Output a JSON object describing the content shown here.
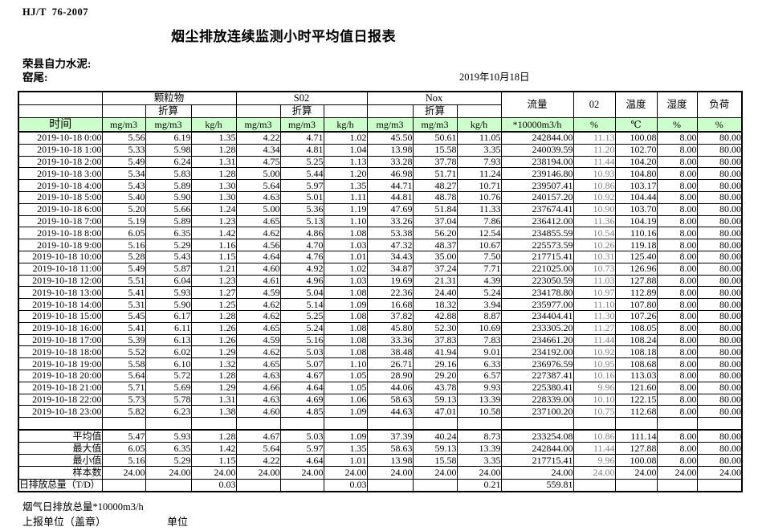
{
  "page": {
    "standard": "HJ/T  76-2007",
    "title": "烟尘排放连续监测小时平均值日报表",
    "company": "荣县自力水泥:",
    "location": "窑尾:",
    "date": "2019年10月18日"
  },
  "table": {
    "time_header": "时间",
    "converted_label": "折算",
    "groups": {
      "pm": "颗粒物",
      "so2": "S02",
      "nox": "Nox",
      "flow": "流量",
      "o2": "02",
      "temp": "温度",
      "humidity": "湿度",
      "load": "负荷"
    },
    "units": [
      "mg/m3",
      "mg/m3",
      "kg/h",
      "mg/m3",
      "mg/m3",
      "kg/h",
      "mg/m3",
      "mg/m3",
      "kg/h",
      "*10000m3/h",
      "%",
      "℃",
      "%",
      "%"
    ],
    "rows": [
      {
        "time": "2019-10-18 0:00",
        "values": [
          "5.56",
          "6.19",
          "1.35",
          "4.22",
          "4.71",
          "1.02",
          "45.50",
          "50.61",
          "11.05",
          "242844.00",
          "11.13",
          "100.08",
          "8.00",
          "80.00"
        ]
      },
      {
        "time": "2019-10-18 1:00",
        "values": [
          "5.33",
          "5.98",
          "1.28",
          "4.34",
          "4.81",
          "1.04",
          "13.98",
          "15.58",
          "3.35",
          "240039.59",
          "11.20",
          "102.70",
          "8.00",
          "80.00"
        ]
      },
      {
        "time": "2019-10-18 2:00",
        "values": [
          "5.49",
          "6.24",
          "1.31",
          "4.75",
          "5.25",
          "1.13",
          "33.28",
          "37.78",
          "7.93",
          "238194.00",
          "11.44",
          "104.20",
          "8.00",
          "80.00"
        ]
      },
      {
        "time": "2019-10-18 3:00",
        "values": [
          "5.34",
          "5.83",
          "1.28",
          "5.00",
          "5.44",
          "1.20",
          "46.98",
          "51.71",
          "11.24",
          "239146.80",
          "10.93",
          "104.80",
          "8.00",
          "80.00"
        ]
      },
      {
        "time": "2019-10-18 4:00",
        "values": [
          "5.43",
          "5.89",
          "1.30",
          "5.64",
          "5.97",
          "1.35",
          "44.71",
          "48.27",
          "10.71",
          "239507.41",
          "10.86",
          "103.17",
          "8.00",
          "80.00"
        ]
      },
      {
        "time": "2019-10-18 5:00",
        "values": [
          "5.40",
          "5.90",
          "1.30",
          "4.63",
          "5.01",
          "1.11",
          "44.81",
          "48.78",
          "10.76",
          "240157.20",
          "10.92",
          "104.44",
          "8.00",
          "80.00"
        ]
      },
      {
        "time": "2019-10-18 6:00",
        "values": [
          "5.20",
          "5.66",
          "1.24",
          "5.00",
          "5.36",
          "1.19",
          "47.69",
          "51.84",
          "11.33",
          "237674.41",
          "10.90",
          "103.70",
          "8.00",
          "80.00"
        ]
      },
      {
        "time": "2019-10-18 7:00",
        "values": [
          "5.19",
          "5.89",
          "1.23",
          "4.65",
          "5.13",
          "1.10",
          "33.26",
          "37.04",
          "7.86",
          "236412.00",
          "11.36",
          "104.19",
          "8.00",
          "80.00"
        ]
      },
      {
        "time": "2019-10-18 8:00",
        "values": [
          "6.05",
          "6.35",
          "1.42",
          "4.62",
          "4.86",
          "1.08",
          "53.38",
          "56.20",
          "12.54",
          "234855.59",
          "10.54",
          "110.16",
          "8.00",
          "80.00"
        ]
      },
      {
        "time": "2019-10-18 9:00",
        "values": [
          "5.16",
          "5.29",
          "1.16",
          "4.56",
          "4.70",
          "1.03",
          "47.32",
          "48.37",
          "10.67",
          "225573.59",
          "10.26",
          "119.18",
          "8.00",
          "80.00"
        ]
      },
      {
        "time": "2019-10-18 10:00",
        "values": [
          "5.28",
          "5.43",
          "1.15",
          "4.64",
          "4.76",
          "1.01",
          "34.43",
          "35.00",
          "7.50",
          "217715.41",
          "10.31",
          "125.40",
          "8.00",
          "80.00"
        ]
      },
      {
        "time": "2019-10-18 11:00",
        "values": [
          "5.49",
          "5.87",
          "1.21",
          "4.60",
          "4.92",
          "1.02",
          "34.87",
          "37.24",
          "7.71",
          "221025.00",
          "10.73",
          "126.96",
          "8.00",
          "80.00"
        ]
      },
      {
        "time": "2019-10-18 12:00",
        "values": [
          "5.51",
          "6.04",
          "1.23",
          "4.61",
          "4.96",
          "1.03",
          "19.69",
          "21.31",
          "4.39",
          "223050.59",
          "11.03",
          "127.88",
          "8.00",
          "80.00"
        ]
      },
      {
        "time": "2019-10-18 13:00",
        "values": [
          "5.41",
          "5.93",
          "1.27",
          "4.59",
          "5.04",
          "1.08",
          "22.36",
          "24.40",
          "5.24",
          "234178.80",
          "10.97",
          "112.89",
          "8.00",
          "80.00"
        ]
      },
      {
        "time": "2019-10-18 14:00",
        "values": [
          "5.31",
          "5.90",
          "1.25",
          "4.62",
          "5.14",
          "1.09",
          "16.68",
          "18.32",
          "3.94",
          "235977.00",
          "11.10",
          "107.80",
          "8.00",
          "80.00"
        ]
      },
      {
        "time": "2019-10-18 15:00",
        "values": [
          "5.45",
          "6.17",
          "1.28",
          "4.62",
          "5.25",
          "1.08",
          "37.82",
          "42.88",
          "8.87",
          "234404.41",
          "11.30",
          "107.26",
          "8.00",
          "80.00"
        ]
      },
      {
        "time": "2019-10-18 16:00",
        "values": [
          "5.41",
          "6.11",
          "1.26",
          "4.65",
          "5.24",
          "1.08",
          "45.80",
          "52.30",
          "10.69",
          "233305.20",
          "11.27",
          "108.05",
          "8.00",
          "80.00"
        ]
      },
      {
        "time": "2019-10-18 17:00",
        "values": [
          "5.39",
          "6.13",
          "1.26",
          "4.59",
          "5.16",
          "1.08",
          "33.36",
          "37.83",
          "7.83",
          "234661.20",
          "11.44",
          "108.24",
          "8.00",
          "80.00"
        ]
      },
      {
        "time": "2019-10-18 18:00",
        "values": [
          "5.52",
          "6.02",
          "1.29",
          "4.62",
          "5.03",
          "1.08",
          "38.48",
          "41.94",
          "9.01",
          "234192.00",
          "10.92",
          "108.18",
          "8.00",
          "80.00"
        ]
      },
      {
        "time": "2019-10-18 19:00",
        "values": [
          "5.58",
          "6.10",
          "1.32",
          "4.65",
          "5.07",
          "1.10",
          "26.71",
          "29.16",
          "6.33",
          "236976.59",
          "10.95",
          "108.68",
          "8.00",
          "80.00"
        ]
      },
      {
        "time": "2019-10-18 20:00",
        "values": [
          "5.64",
          "5.72",
          "1.28",
          "4.63",
          "4.67",
          "1.05",
          "28.90",
          "29.20",
          "6.57",
          "227387.41",
          "10.16",
          "113.03",
          "8.00",
          "80.00"
        ]
      },
      {
        "time": "2019-10-18 21:00",
        "values": [
          "5.71",
          "5.69",
          "1.29",
          "4.66",
          "4.64",
          "1.05",
          "44.06",
          "43.78",
          "9.93",
          "225380.41",
          "9.96",
          "121.60",
          "8.00",
          "80.00"
        ]
      },
      {
        "time": "2019-10-18 22:00",
        "values": [
          "5.73",
          "5.78",
          "1.31",
          "4.63",
          "4.69",
          "1.06",
          "58.63",
          "59.13",
          "13.39",
          "228339.00",
          "10.10",
          "122.15",
          "8.00",
          "80.00"
        ]
      },
      {
        "time": "2019-10-18 23:00",
        "values": [
          "5.82",
          "6.23",
          "1.38",
          "4.60",
          "4.85",
          "1.09",
          "44.63",
          "47.01",
          "10.58",
          "237100.20",
          "10.75",
          "112.68",
          "8.00",
          "80.00"
        ]
      }
    ],
    "summary": [
      {
        "label": "平均值",
        "values": [
          "5.47",
          "5.93",
          "1.28",
          "4.67",
          "5.03",
          "1.09",
          "37.39",
          "40.24",
          "8.73",
          "233254.08",
          "10.86",
          "111.14",
          "8.00",
          "80.00"
        ]
      },
      {
        "label": "最大值",
        "values": [
          "6.05",
          "6.35",
          "1.42",
          "5.64",
          "5.97",
          "1.35",
          "58.63",
          "59.13",
          "13.39",
          "242844.00",
          "11.44",
          "127.88",
          "8.00",
          "80.00"
        ]
      },
      {
        "label": "最小值",
        "values": [
          "5.16",
          "5.29",
          "1.15",
          "4.22",
          "4.64",
          "1.01",
          "13.98",
          "15.58",
          "3.35",
          "217715.41",
          "9.96",
          "100.08",
          "8.00",
          "80.00"
        ]
      },
      {
        "label": "样本数",
        "values": [
          "24.00",
          "24.00",
          "24.00",
          "24.00",
          "24.00",
          "24.00",
          "24.00",
          "24.00",
          "24.00",
          "24.00",
          "24.00",
          "24.00",
          "24.00",
          "24.00"
        ]
      }
    ],
    "daily_total": {
      "label": "日排放总量（T/D）",
      "values": [
        "",
        "",
        "0.03",
        "",
        "",
        "0.03",
        "",
        "",
        "0.21",
        "559.81",
        "",
        "",
        "",
        ""
      ]
    }
  },
  "footer": {
    "flue_total": "烟气日排放总量*10000m3/h",
    "report_unit": "上报单位（盖章）",
    "unit": "单位"
  },
  "colors": {
    "header_green": "#ccffcc",
    "o2_text": "#808080",
    "grid": "#000000"
  }
}
